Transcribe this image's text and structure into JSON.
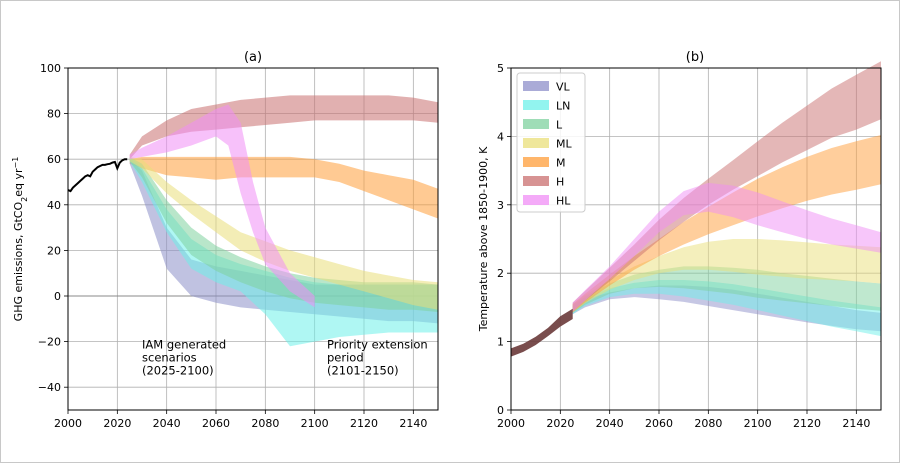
{
  "chart_data": [
    {
      "type": "area",
      "title": "(a)",
      "xlabel": "",
      "ylabel": "GHG emissions, GtCO",
      "ylabel_sub": "2",
      "ylabel_tail": "eq yr",
      "ylabel_sup": "−1",
      "xlim": [
        2000,
        2150
      ],
      "ylim": [
        -50,
        100
      ],
      "xticks": [
        "2000",
        "2020",
        "2040",
        "2060",
        "2080",
        "2100",
        "2120",
        "2140"
      ],
      "yticks": [
        "−40",
        "−20",
        "0",
        "20",
        "40",
        "60",
        "80",
        "100"
      ],
      "grid": true,
      "annotations": [
        {
          "lines": [
            "IAM generated",
            "scenarios",
            "(2025-2100)"
          ],
          "x": 2030,
          "y": -23
        },
        {
          "lines": [
            "Priority extension",
            "period",
            "(2101-2150)"
          ],
          "x": 2105,
          "y": -23
        }
      ],
      "historical": {
        "color": "#000000",
        "x": [
          2000,
          2001,
          2002,
          2003,
          2004,
          2005,
          2006,
          2007,
          2008,
          2009,
          2010,
          2011,
          2012,
          2013,
          2014,
          2015,
          2016,
          2017,
          2018,
          2019,
          2020,
          2021,
          2022,
          2023,
          2024
        ],
        "y": [
          46.5,
          46,
          47.5,
          48.5,
          49.5,
          50.5,
          51.5,
          52.5,
          53,
          52.5,
          54.5,
          55.5,
          56.5,
          57,
          57.5,
          57.5,
          57.8,
          58,
          58.5,
          58.8,
          56,
          58.5,
          59.5,
          60,
          60
        ]
      },
      "series": [
        {
          "name": "M",
          "color": "#ff9e3a",
          "x": [
            2025,
            2030,
            2040,
            2050,
            2060,
            2070,
            2080,
            2090,
            2100,
            2110,
            2120,
            2130,
            2140,
            2150
          ],
          "upper": [
            60,
            61,
            61,
            61,
            61,
            61,
            61,
            61,
            60,
            58,
            55,
            53,
            51,
            47
          ],
          "lower": [
            58,
            56,
            53,
            52,
            51,
            52,
            52,
            52,
            52,
            50,
            46,
            42,
            38,
            34
          ]
        },
        {
          "name": "H",
          "color": "#c96f6f",
          "x": [
            2025,
            2030,
            2040,
            2050,
            2060,
            2070,
            2080,
            2090,
            2100,
            2110,
            2120,
            2130,
            2140,
            2150
          ],
          "upper": [
            62,
            70,
            77,
            82,
            84,
            86,
            87,
            88,
            88,
            88,
            88,
            88,
            87,
            85
          ],
          "lower": [
            60,
            66,
            70,
            72,
            73,
            74,
            75,
            76,
            77,
            77,
            77,
            77,
            77,
            76
          ]
        },
        {
          "name": "VL",
          "color": "#8d8fc9",
          "x": [
            2025,
            2030,
            2040,
            2050,
            2060,
            2070,
            2080,
            2090,
            2100,
            2110,
            2120,
            2130,
            2140,
            2150
          ],
          "upper": [
            60,
            55,
            30,
            16,
            13,
            11,
            9,
            7,
            5,
            5,
            5,
            5,
            5,
            5
          ],
          "lower": [
            58,
            44,
            12,
            0,
            -3,
            -5,
            -6,
            -7,
            -8,
            -9,
            -10,
            -11,
            -11,
            -12
          ]
        },
        {
          "name": "LN",
          "color": "#6ef0ea",
          "x": [
            2025,
            2030,
            2040,
            2050,
            2060,
            2070,
            2080,
            2090,
            2100,
            2110,
            2120,
            2130,
            2140,
            2150
          ],
          "upper": [
            61,
            56,
            38,
            25,
            18,
            14,
            11,
            8,
            6,
            5,
            5,
            5,
            5,
            5
          ],
          "lower": [
            59,
            50,
            28,
            12,
            6,
            2,
            -8,
            -22,
            -20,
            -18,
            -17,
            -16,
            -16,
            -16
          ]
        },
        {
          "name": "L",
          "color": "#7fd19f",
          "x": [
            2025,
            2030,
            2040,
            2050,
            2060,
            2070,
            2080,
            2090,
            2100,
            2110,
            2120,
            2130,
            2140,
            2150
          ],
          "upper": [
            61,
            58,
            42,
            30,
            22,
            17,
            13,
            10,
            8,
            7,
            6,
            6,
            6,
            5
          ],
          "lower": [
            59,
            52,
            32,
            18,
            11,
            6,
            2,
            -1,
            -3,
            -4,
            -5,
            -6,
            -6,
            -7
          ]
        },
        {
          "name": "ML",
          "color": "#e9df7a",
          "x": [
            2025,
            2030,
            2040,
            2050,
            2060,
            2070,
            2080,
            2090,
            2100,
            2110,
            2120,
            2130,
            2140,
            2150
          ],
          "upper": [
            61,
            60,
            50,
            42,
            35,
            28,
            24,
            20,
            17,
            14,
            11,
            9,
            7,
            6
          ],
          "lower": [
            59,
            56,
            45,
            36,
            28,
            20,
            15,
            11,
            8,
            5,
            2,
            -1,
            -4,
            -6
          ]
        },
        {
          "name": "HL",
          "color": "#f08ef5",
          "x": [
            2025,
            2030,
            2040,
            2050,
            2060,
            2065,
            2070,
            2075,
            2080,
            2090,
            2100
          ],
          "upper": [
            62,
            65,
            70,
            76,
            82,
            84,
            76,
            50,
            30,
            10,
            0
          ],
          "lower": [
            60,
            61,
            63,
            66,
            70,
            66,
            45,
            28,
            14,
            2,
            -5
          ]
        }
      ]
    },
    {
      "type": "area",
      "title": "(b)",
      "xlabel": "",
      "ylabel": "Temperature above 1850-1900, K",
      "xlim": [
        2000,
        2150
      ],
      "ylim": [
        0,
        5
      ],
      "xticks": [
        "2000",
        "2020",
        "2040",
        "2060",
        "2080",
        "2100",
        "2120",
        "2140"
      ],
      "yticks": [
        "0",
        "1",
        "2",
        "3",
        "4",
        "5"
      ],
      "grid": true,
      "legend": "top-left",
      "historical": {
        "color": "#6a3a3a",
        "x": [
          2000,
          2005,
          2010,
          2015,
          2020,
          2025
        ],
        "upper": [
          0.9,
          0.97,
          1.07,
          1.2,
          1.37,
          1.48
        ],
        "lower": [
          0.78,
          0.85,
          0.95,
          1.08,
          1.22,
          1.33
        ]
      },
      "series": [
        {
          "name": "VL",
          "color": "#8d8fc9",
          "x": [
            2025,
            2030,
            2040,
            2050,
            2060,
            2070,
            2080,
            2090,
            2100,
            2110,
            2120,
            2130,
            2140,
            2150
          ],
          "upper": [
            1.52,
            1.62,
            1.72,
            1.78,
            1.82,
            1.82,
            1.8,
            1.76,
            1.7,
            1.64,
            1.58,
            1.52,
            1.46,
            1.42
          ],
          "lower": [
            1.4,
            1.5,
            1.62,
            1.65,
            1.62,
            1.58,
            1.52,
            1.46,
            1.4,
            1.34,
            1.28,
            1.23,
            1.18,
            1.15
          ]
        },
        {
          "name": "LN",
          "color": "#6ef0ea",
          "x": [
            2025,
            2030,
            2040,
            2050,
            2060,
            2070,
            2080,
            2090,
            2100,
            2110,
            2120,
            2130,
            2140,
            2150
          ],
          "upper": [
            1.53,
            1.64,
            1.78,
            1.86,
            1.9,
            1.9,
            1.88,
            1.84,
            1.78,
            1.72,
            1.66,
            1.6,
            1.55,
            1.5
          ],
          "lower": [
            1.4,
            1.52,
            1.65,
            1.7,
            1.7,
            1.66,
            1.6,
            1.54,
            1.46,
            1.38,
            1.3,
            1.22,
            1.15,
            1.08
          ]
        },
        {
          "name": "L",
          "color": "#7fd19f",
          "x": [
            2025,
            2030,
            2040,
            2050,
            2060,
            2070,
            2080,
            2090,
            2100,
            2110,
            2120,
            2130,
            2140,
            2150
          ],
          "upper": [
            1.54,
            1.66,
            1.85,
            1.98,
            2.05,
            2.1,
            2.1,
            2.08,
            2.05,
            2.0,
            1.96,
            1.92,
            1.88,
            1.85
          ],
          "lower": [
            1.42,
            1.54,
            1.7,
            1.78,
            1.8,
            1.78,
            1.74,
            1.7,
            1.64,
            1.6,
            1.56,
            1.52,
            1.48,
            1.45
          ]
        },
        {
          "name": "ML",
          "color": "#e9df7a",
          "x": [
            2025,
            2030,
            2040,
            2050,
            2060,
            2070,
            2080,
            2090,
            2100,
            2110,
            2120,
            2130,
            2140,
            2150
          ],
          "upper": [
            1.55,
            1.68,
            1.9,
            2.1,
            2.25,
            2.38,
            2.46,
            2.5,
            2.5,
            2.48,
            2.45,
            2.42,
            2.4,
            2.38
          ],
          "lower": [
            1.43,
            1.56,
            1.76,
            1.9,
            2.0,
            2.05,
            2.05,
            2.02,
            1.98,
            1.95,
            1.92,
            1.9,
            1.88,
            1.85
          ]
        },
        {
          "name": "M",
          "color": "#ff9e3a",
          "x": [
            2025,
            2030,
            2040,
            2050,
            2060,
            2070,
            2080,
            2090,
            2100,
            2110,
            2120,
            2130,
            2140,
            2150
          ],
          "upper": [
            1.55,
            1.7,
            1.98,
            2.25,
            2.5,
            2.75,
            2.97,
            3.18,
            3.38,
            3.55,
            3.7,
            3.83,
            3.93,
            4.02
          ],
          "lower": [
            1.43,
            1.57,
            1.82,
            2.05,
            2.25,
            2.42,
            2.57,
            2.7,
            2.83,
            2.95,
            3.06,
            3.15,
            3.22,
            3.3
          ]
        },
        {
          "name": "H",
          "color": "#c96f6f",
          "x": [
            2025,
            2030,
            2040,
            2050,
            2060,
            2070,
            2080,
            2090,
            2100,
            2110,
            2120,
            2130,
            2140,
            2150
          ],
          "upper": [
            1.57,
            1.74,
            2.08,
            2.42,
            2.78,
            3.1,
            3.38,
            3.65,
            3.93,
            4.2,
            4.45,
            4.7,
            4.9,
            5.1
          ],
          "lower": [
            1.44,
            1.6,
            1.88,
            2.18,
            2.48,
            2.75,
            3.0,
            3.22,
            3.42,
            3.62,
            3.8,
            3.98,
            4.1,
            4.25
          ]
        },
        {
          "name": "HL",
          "color": "#f08ef5",
          "x": [
            2025,
            2030,
            2040,
            2050,
            2060,
            2070,
            2080,
            2090,
            2100,
            2110,
            2120,
            2130,
            2140,
            2150
          ],
          "upper": [
            1.57,
            1.75,
            2.1,
            2.5,
            2.9,
            3.2,
            3.32,
            3.28,
            3.18,
            3.05,
            2.92,
            2.8,
            2.7,
            2.6
          ],
          "lower": [
            1.44,
            1.6,
            1.92,
            2.25,
            2.6,
            2.85,
            2.9,
            2.82,
            2.7,
            2.6,
            2.5,
            2.42,
            2.36,
            2.3
          ]
        }
      ]
    }
  ]
}
